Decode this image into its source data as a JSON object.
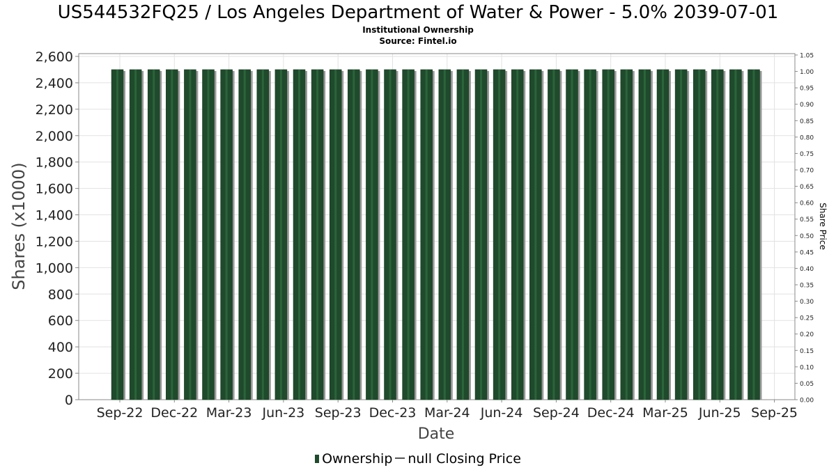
{
  "title": "US544532FQ25 / Los Angeles Department of Water & Power - 5.0% 2039-07-01",
  "subtitle_lines": [
    "Institutional Ownership",
    "Source: Fintel.io"
  ],
  "legend": {
    "ownership_label": "Ownership",
    "price_label": "null Closing Price"
  },
  "colors": {
    "bar": "#1f4a2c",
    "bar_shadow": "#999999",
    "grid": "#e2e2e2",
    "axis": "#888888"
  },
  "chart_data": {
    "type": "bar",
    "title": "US544532FQ25 / Los Angeles Department of Water & Power - 5.0% 2039-07-01",
    "xlabel": "Date",
    "ylabel": "Shares (x1000)",
    "y2label": "Share Price",
    "ylim": [
      0,
      2600
    ],
    "y2lim": [
      0,
      1.05
    ],
    "yticks": [
      "0",
      "200",
      "400",
      "600",
      "800",
      "1,000",
      "1,200",
      "1,400",
      "1,600",
      "1,800",
      "2,000",
      "2,200",
      "2,400",
      "2,600"
    ],
    "y2ticks": [
      "0.00",
      "0.05",
      "0.10",
      "0.15",
      "0.20",
      "0.25",
      "0.30",
      "0.35",
      "0.40",
      "0.45",
      "0.50",
      "0.55",
      "0.60",
      "0.65",
      "0.70",
      "0.75",
      "0.80",
      "0.85",
      "0.90",
      "0.95",
      "1.00",
      "1.05"
    ],
    "xtick_labels": [
      "Sep-22",
      "Dec-22",
      "Mar-23",
      "Jun-23",
      "Sep-23",
      "Dec-23",
      "Mar-24",
      "Jun-24",
      "Sep-24",
      "Dec-24",
      "Mar-25",
      "Jun-25",
      "Sep-25"
    ],
    "grid": true,
    "legend_position": "bottom",
    "series": [
      {
        "name": "Ownership",
        "values": [
          2500,
          2500,
          2500,
          2500,
          2500,
          2500,
          2500,
          2500,
          2500,
          2500,
          2500,
          2500,
          2500,
          2500,
          2500,
          2500,
          2500,
          2500,
          2500,
          2500,
          2500,
          2500,
          2500,
          2500,
          2500,
          2500,
          2500,
          2500,
          2500,
          2500,
          2500,
          2500,
          2500,
          2500,
          2500,
          2500
        ]
      }
    ]
  }
}
